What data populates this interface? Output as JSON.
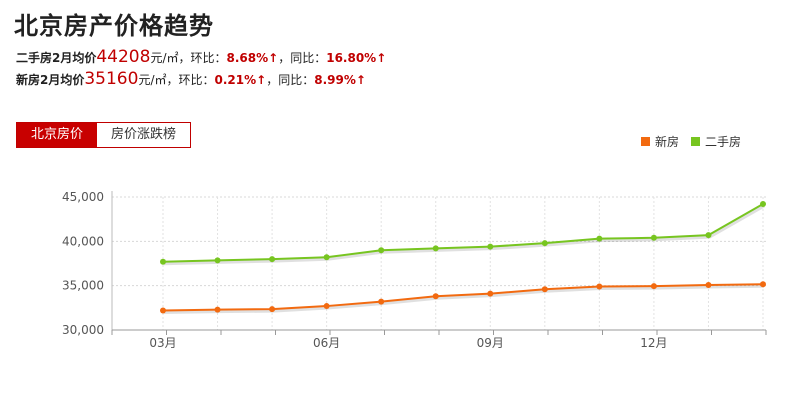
{
  "header": {
    "title": "北京房产价格趋势"
  },
  "second_hand": {
    "label": "二手房2月均价",
    "price": "44208",
    "unit": "元/㎡",
    "mom_label": "，环比：",
    "mom_value": "8.68%↑",
    "yoy_label": "，同比：",
    "yoy_value": "16.80%↑"
  },
  "new_house": {
    "label": "新房2月均价",
    "price": "35160",
    "unit": "元/㎡",
    "mom_label": "，环比：",
    "mom_value": "0.21%↑",
    "yoy_label": "，同比：",
    "yoy_value": "8.99%↑"
  },
  "tabs": [
    {
      "label": "北京房价",
      "active": true
    },
    {
      "label": "房价涨跌榜",
      "active": false
    }
  ],
  "colors": {
    "new_house": "#f26a10",
    "second_hand": "#77c520",
    "accent": "#c80000"
  },
  "chart_data": {
    "type": "line",
    "title": "",
    "xlabel": "",
    "ylabel": "",
    "legend_position": "top-right",
    "grid": true,
    "ylim": [
      30000,
      45000
    ],
    "yticks": [
      "30,000",
      "35,000",
      "40,000",
      "45,000"
    ],
    "xticks": [
      {
        "index": 0,
        "label": "03月"
      },
      {
        "index": 3,
        "label": "06月"
      },
      {
        "index": 6,
        "label": "09月"
      },
      {
        "index": 9,
        "label": "12月"
      }
    ],
    "series": [
      {
        "name": "新房",
        "color": "#f26a10",
        "values": [
          32200,
          32300,
          32350,
          32700,
          33200,
          33800,
          34100,
          34600,
          34900,
          34950,
          35080,
          35160
        ]
      },
      {
        "name": "二手房",
        "color": "#77c520",
        "values": [
          37700,
          37850,
          38000,
          38200,
          39000,
          39200,
          39400,
          39800,
          40300,
          40400,
          40700,
          44208
        ]
      }
    ]
  }
}
